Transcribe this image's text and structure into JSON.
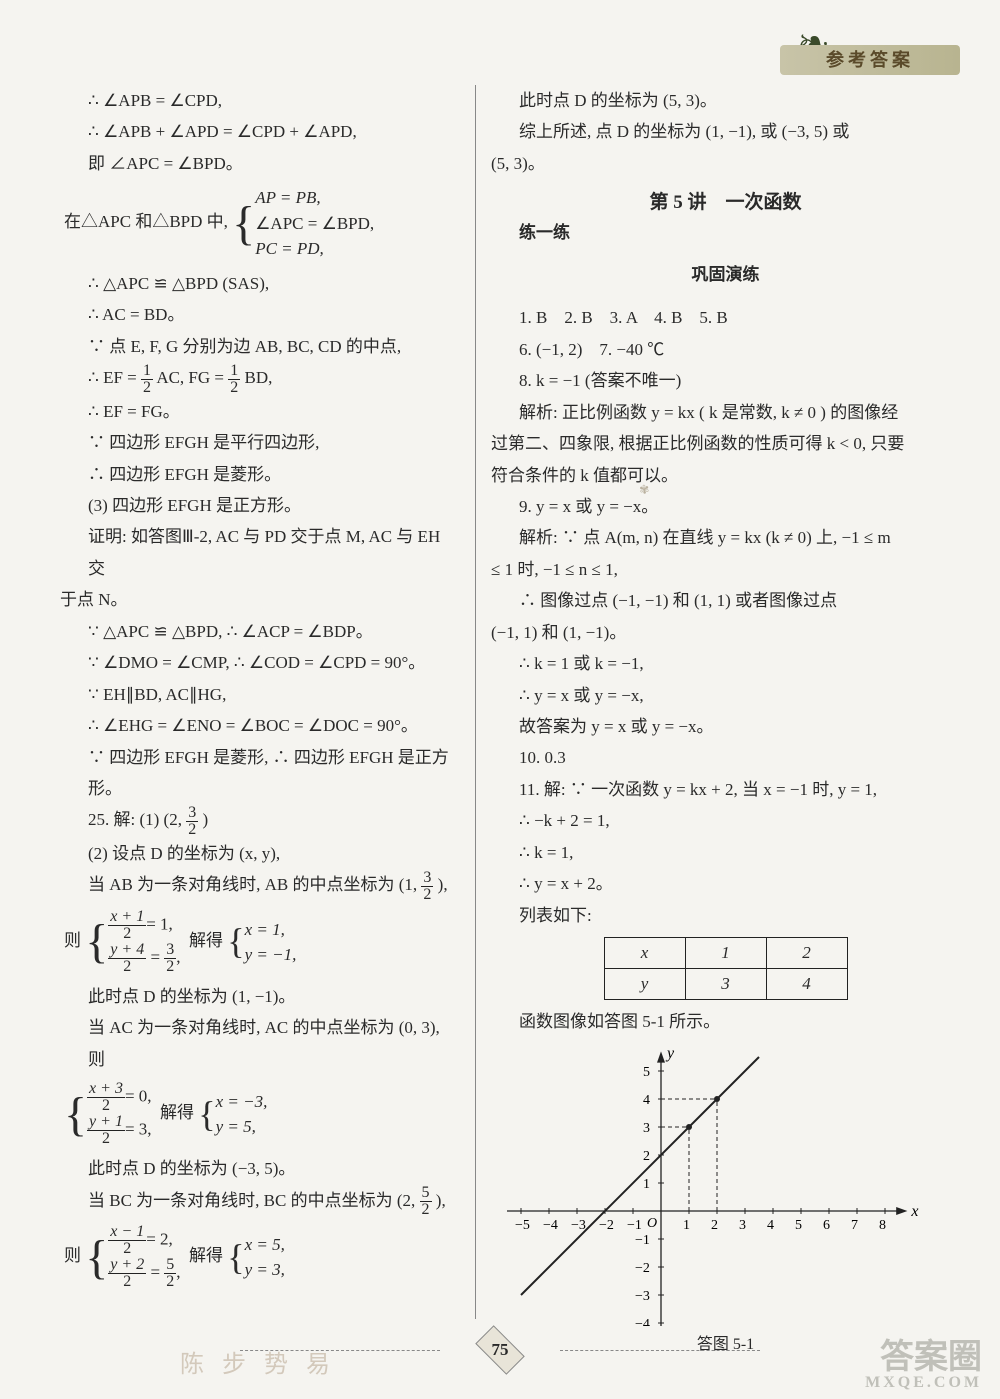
{
  "header": {
    "banner": "参考答案"
  },
  "left": {
    "l1": "∴ ∠APB = ∠CPD,",
    "l2": "∴ ∠APB + ∠APD = ∠CPD + ∠APD,",
    "l3": "即 ∠APC = ∠BPD。",
    "l4_pre": "在△APC 和△BPD 中,",
    "l4_b1": "AP = PB,",
    "l4_b2": "∠APC = ∠BPD,",
    "l4_b3": "PC = PD,",
    "l5": "∴ △APC ≌ △BPD (SAS),",
    "l6": "∴ AC = BD。",
    "l7": "∵ 点 E, F, G 分别为边 AB, BC, CD 的中点,",
    "l8_a": "∴ EF =",
    "l8_b": "AC, FG =",
    "l8_c": "BD,",
    "l9": "∴ EF = FG。",
    "l10": "∵ 四边形 EFGH 是平行四边形,",
    "l11": "∴ 四边形 EFGH 是菱形。",
    "l12": "(3) 四边形 EFGH 是正方形。",
    "l13": "证明: 如答图Ⅲ-2, AC 与 PD 交于点 M, AC 与 EH 交",
    "l13b": "于点 N。",
    "l14": "∵ △APC ≌ △BPD, ∴ ∠ACP = ∠BDP。",
    "l15": "∵ ∠DMO = ∠CMP, ∴ ∠COD = ∠CPD = 90°。",
    "l16": "∵ EH∥BD, AC∥HG,",
    "l17": "∴ ∠EHG = ∠ENO = ∠BOC = ∠DOC = 90°。",
    "l18": "∵ 四边形 EFGH 是菱形, ∴ 四边形 EFGH 是正方形。",
    "l19_a": "25. 解: (1) (2,",
    "l19_b": ")",
    "l20": "(2) 设点 D 的坐标为 (x, y),",
    "l21_a": "当 AB 为一条对角线时, AB 的中点坐标为 (1,",
    "l21_b": "),",
    "eq1_l": "则",
    "eq1_a_t": "x + 1",
    "eq1_a_b": "2",
    "eq1_a_r": "= 1,",
    "eq1_bt": "y + 4",
    "eq1_bb": "2",
    "eq1_br_t": "3",
    "eq1_br_b": "2",
    "eq1_br_eq": "=",
    "eq1_br_end": ",",
    "eq1_sol_l": "解得",
    "eq1_sol_a": "x = 1,",
    "eq1_sol_b": "y = −1,",
    "l22": "此时点 D 的坐标为 (1, −1)。",
    "l23": "当 AC 为一条对角线时, AC 的中点坐标为 (0, 3), 则",
    "eq2_a_t": "x + 3",
    "eq2_a_b": "2",
    "eq2_a_r": "= 0,",
    "eq2_bt": "y + 1",
    "eq2_bb": "2",
    "eq2_br": "= 3,",
    "eq2_sol_l": "解得",
    "eq2_sol_a": "x = −3,",
    "eq2_sol_b": "y = 5,",
    "l24": "此时点 D 的坐标为 (−3, 5)。",
    "l25_a": "当 BC 为一条对角线时, BC 的中点坐标为 (2,",
    "l25_b": "),",
    "eq3_l": "则",
    "eq3_a_t": "x − 1",
    "eq3_a_b": "2",
    "eq3_a_r": "= 2,",
    "eq3_bt": "y + 2",
    "eq3_bb": "2",
    "eq3_br_t": "5",
    "eq3_br_b": "2",
    "eq3_br_eq": "=",
    "eq3_br_end": ",",
    "eq3_sol_l": "解得",
    "eq3_sol_a": "x = 5,",
    "eq3_sol_b": "y = 3,"
  },
  "right": {
    "r1": "此时点 D 的坐标为 (5, 3)。",
    "r2": "综上所述, 点 D 的坐标为 (1, −1), 或 (−3, 5) 或",
    "r2b": "(5, 3)。",
    "sec": "第 5 讲　一次函数",
    "sub1": "练一练",
    "sub2": "巩固演练",
    "r3": "1. B　2. B　3. A　4. B　5. B",
    "r4": "6. (−1, 2)　7. −40 ℃",
    "r5": "8. k = −1 (答案不唯一)",
    "r6": "解析: 正比例函数 y = kx ( k 是常数, k ≠ 0 ) 的图像经",
    "r6b": "过第二、四象限, 根据正比例函数的性质可得 k < 0, 只要",
    "r6c": "符合条件的 k 值都可以。",
    "r7": "9. y = x 或 y = −x。",
    "r8": "解析: ∵ 点 A(m, n) 在直线 y = kx (k ≠ 0) 上, −1 ≤ m",
    "r8b": "≤ 1 时, −1 ≤ n ≤ 1,",
    "r9": "∴ 图像过点 (−1, −1) 和 (1, 1) 或者图像过点",
    "r9b": "(−1, 1) 和 (1, −1)。",
    "r10": "∴ k = 1 或 k = −1,",
    "r11": "∴ y = x 或 y = −x,",
    "r12": "故答案为 y = x 或 y = −x。",
    "r13": "10. 0.3",
    "r14": "11. 解: ∵ 一次函数 y = kx + 2, 当 x = −1 时, y = 1,",
    "r15": "∴ −k + 2 = 1,",
    "r16": "∴ k = 1,",
    "r17": "∴ y = x + 2。",
    "r18": "列表如下:",
    "table": {
      "r1c1": "x",
      "r1c2": "1",
      "r1c3": "2",
      "r2c1": "y",
      "r2c2": "3",
      "r2c3": "4"
    },
    "r19": "函数图像如答图 5-1 所示。",
    "graph": {
      "xlabel": "x",
      "ylabel": "y",
      "xticks": [
        "−5",
        "−4",
        "−3",
        "−2",
        "−1",
        "O",
        "1",
        "2",
        "3",
        "4",
        "5",
        "6",
        "7",
        "8"
      ],
      "yticks_pos": [
        "1",
        "2",
        "3",
        "4",
        "5"
      ],
      "yticks_neg": [
        "−1",
        "−2",
        "−3",
        "−4"
      ],
      "line_y_intercept": 2,
      "line_slope": 1,
      "points": [
        [
          1,
          3
        ],
        [
          2,
          4
        ]
      ],
      "grid_color": "#222",
      "line_color": "#222"
    },
    "caption": "答图 5-1"
  },
  "pageNumber": "75",
  "watermark_main": "答案圈",
  "watermark_sub": "MXQE.COM",
  "faint": "陈  步  势  易",
  "fractions": {
    "half_t": "1",
    "half_b": "2",
    "three_half_t": "3",
    "three_half_b": "2",
    "five_half_t": "5",
    "five_half_b": "2"
  }
}
